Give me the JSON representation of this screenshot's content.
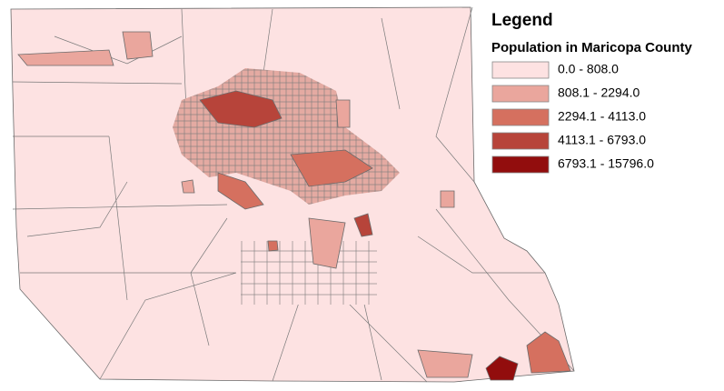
{
  "legend": {
    "title": "Legend",
    "subtitle": "Population in Maricopa County",
    "classes": [
      {
        "label": "0.0 - 808.0",
        "color": "#fde2e2"
      },
      {
        "label": "808.1 - 2294.0",
        "color": "#eaa69d"
      },
      {
        "label": "2294.1 - 4113.0",
        "color": "#d5705f"
      },
      {
        "label": "4113.1 - 6793.0",
        "color": "#b7443a"
      },
      {
        "label": "6793.1 - 15796.0",
        "color": "#920d0d"
      }
    ]
  }
}
